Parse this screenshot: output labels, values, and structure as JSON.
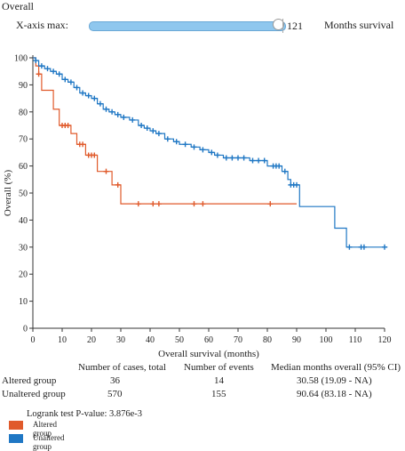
{
  "header": {
    "title": "Overall",
    "xmax_label": "X-axis max:",
    "xmax_value": "121",
    "xmax_unit": "Months survival",
    "slider_fraction": 1.0
  },
  "colors": {
    "altered": "#e05a2b",
    "unaltered": "#1f77c4"
  },
  "chart_data": {
    "type": "line",
    "title": "",
    "xlabel": "Overall survival (months)",
    "ylabel": "Overall (%)",
    "xlim": [
      0,
      120
    ],
    "ylim": [
      0,
      100
    ],
    "xticks": [
      "0",
      "10",
      "20",
      "30",
      "40",
      "50",
      "60",
      "70",
      "80",
      "90",
      "100",
      "110",
      "120"
    ],
    "yticks": [
      "0",
      "10",
      "20",
      "30",
      "40",
      "50",
      "60",
      "70",
      "80",
      "90",
      "100"
    ],
    "grid": false,
    "series": [
      {
        "name": "Altered group",
        "color": "#e05a2b",
        "steps": [
          [
            0,
            100
          ],
          [
            1,
            97
          ],
          [
            2,
            94
          ],
          [
            3,
            88
          ],
          [
            7,
            81
          ],
          [
            9,
            75
          ],
          [
            13,
            72
          ],
          [
            15,
            68
          ],
          [
            18,
            64
          ],
          [
            22,
            58
          ],
          [
            27,
            53
          ],
          [
            30,
            46
          ],
          [
            90,
            46
          ]
        ],
        "censored": [
          [
            2,
            94
          ],
          [
            10,
            75
          ],
          [
            11,
            75
          ],
          [
            12,
            75
          ],
          [
            16,
            68
          ],
          [
            17,
            68
          ],
          [
            19,
            64
          ],
          [
            20,
            64
          ],
          [
            21,
            64
          ],
          [
            25,
            58
          ],
          [
            29,
            53
          ],
          [
            36,
            46
          ],
          [
            41,
            46
          ],
          [
            43,
            46
          ],
          [
            55,
            46
          ],
          [
            58,
            46
          ],
          [
            81,
            46
          ]
        ]
      },
      {
        "name": "Unaltered group",
        "color": "#1f77c4",
        "steps": [
          [
            0,
            100
          ],
          [
            1,
            99
          ],
          [
            2,
            97
          ],
          [
            4,
            96
          ],
          [
            6,
            95
          ],
          [
            8,
            94
          ],
          [
            10,
            92
          ],
          [
            12,
            91
          ],
          [
            14,
            89
          ],
          [
            16,
            87
          ],
          [
            18,
            86
          ],
          [
            20,
            85
          ],
          [
            22,
            83
          ],
          [
            24,
            81
          ],
          [
            26,
            80
          ],
          [
            28,
            79
          ],
          [
            30,
            78
          ],
          [
            33,
            77
          ],
          [
            36,
            75
          ],
          [
            38,
            74
          ],
          [
            40,
            73
          ],
          [
            42,
            72
          ],
          [
            45,
            70
          ],
          [
            48,
            69
          ],
          [
            50,
            68
          ],
          [
            54,
            67
          ],
          [
            57,
            66
          ],
          [
            60,
            65
          ],
          [
            62,
            64
          ],
          [
            65,
            63
          ],
          [
            74,
            62
          ],
          [
            80,
            60
          ],
          [
            85,
            58
          ],
          [
            87,
            55
          ],
          [
            88,
            53
          ],
          [
            91,
            45
          ],
          [
            103,
            37
          ],
          [
            107,
            30
          ],
          [
            121,
            30
          ]
        ],
        "censored": [
          [
            1,
            99
          ],
          [
            3,
            97
          ],
          [
            5,
            96
          ],
          [
            7,
            95
          ],
          [
            9,
            94
          ],
          [
            11,
            92
          ],
          [
            13,
            91
          ],
          [
            15,
            89
          ],
          [
            17,
            87
          ],
          [
            19,
            86
          ],
          [
            21,
            85
          ],
          [
            23,
            83
          ],
          [
            25,
            81
          ],
          [
            27,
            80
          ],
          [
            29,
            79
          ],
          [
            31,
            78
          ],
          [
            34,
            77
          ],
          [
            37,
            75
          ],
          [
            39,
            74
          ],
          [
            41,
            73
          ],
          [
            43,
            72
          ],
          [
            46,
            70
          ],
          [
            49,
            69
          ],
          [
            52,
            68
          ],
          [
            55,
            67
          ],
          [
            58,
            66
          ],
          [
            61,
            65
          ],
          [
            63,
            64
          ],
          [
            66,
            63
          ],
          [
            68,
            63
          ],
          [
            70,
            63
          ],
          [
            72,
            63
          ],
          [
            75,
            62
          ],
          [
            77,
            62
          ],
          [
            79,
            62
          ],
          [
            82,
            60
          ],
          [
            83,
            60
          ],
          [
            84,
            60
          ],
          [
            86,
            58
          ],
          [
            88,
            53
          ],
          [
            89,
            53
          ],
          [
            90,
            53
          ],
          [
            108,
            30
          ],
          [
            112,
            30
          ],
          [
            113,
            30
          ],
          [
            120,
            30
          ]
        ]
      }
    ]
  },
  "stats": {
    "headers": [
      "Number of cases, total",
      "Number of events",
      "Median months overall (95% CI)"
    ],
    "rows": [
      {
        "group": "Altered group",
        "cases": "36",
        "events": "14",
        "median": "30.58 (19.09 - NA)"
      },
      {
        "group": "Unaltered group",
        "cases": "570",
        "events": "155",
        "median": "90.64 (83.18 - NA)"
      }
    ]
  },
  "logrank": "Logrank test P-value: 3.876e-3",
  "legend": [
    {
      "label": "Altered group",
      "color": "#e05a2b"
    },
    {
      "label": "Unaltered group",
      "color": "#1f77c4"
    }
  ]
}
